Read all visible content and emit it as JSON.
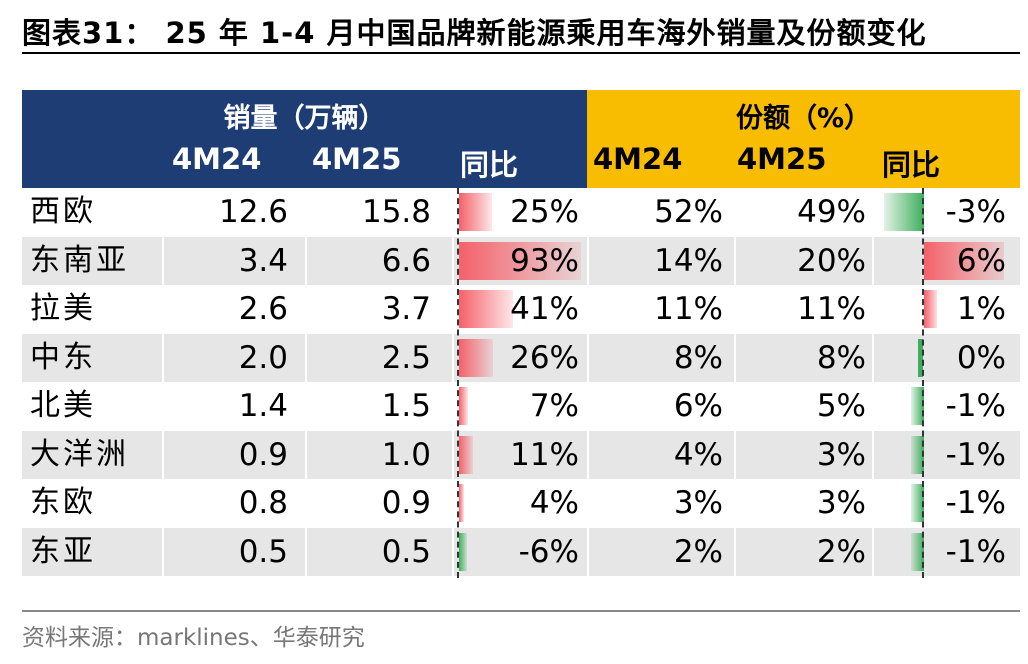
{
  "title": "图表31： 25 年 1-4 月中国品牌新能源乘用车海外销量及份额变化",
  "group_sales": "销量（万辆）",
  "group_share": "份额（%）",
  "columns": {
    "sales_4m24": "4M24",
    "sales_4m25": "4M25",
    "sales_yoy": "同比",
    "share_4m24": "4M24",
    "share_4m25": "4M25",
    "share_yoy": "同比"
  },
  "colors": {
    "header_blue": "#1d3d74",
    "header_gold": "#f9bd00",
    "row_shade": "#e6e6e6",
    "positive_bar": "#f4616a",
    "negative_bar": "#3eae5c"
  },
  "rows": [
    {
      "region": "西欧",
      "s24": "12.6",
      "s25": "15.8",
      "syoy": "25%",
      "syoy_v": 25,
      "p24": "52%",
      "p25": "49%",
      "pyoy": "-3%",
      "pyoy_v": -3
    },
    {
      "region": "东南亚",
      "s24": "3.4",
      "s25": "6.6",
      "syoy": "93%",
      "syoy_v": 93,
      "p24": "14%",
      "p25": "20%",
      "pyoy": "6%",
      "pyoy_v": 6
    },
    {
      "region": "拉美",
      "s24": "2.6",
      "s25": "3.7",
      "syoy": "41%",
      "syoy_v": 41,
      "p24": "11%",
      "p25": "11%",
      "pyoy": "1%",
      "pyoy_v": 1
    },
    {
      "region": "中东",
      "s24": "2.0",
      "s25": "2.5",
      "syoy": "26%",
      "syoy_v": 26,
      "p24": "8%",
      "p25": "8%",
      "pyoy": "0%",
      "pyoy_v": 0
    },
    {
      "region": "北美",
      "s24": "1.4",
      "s25": "1.5",
      "syoy": "7%",
      "syoy_v": 7,
      "p24": "6%",
      "p25": "5%",
      "pyoy": "-1%",
      "pyoy_v": -1
    },
    {
      "region": "大洋洲",
      "s24": "0.9",
      "s25": "1.0",
      "syoy": "11%",
      "syoy_v": 11,
      "p24": "4%",
      "p25": "3%",
      "pyoy": "-1%",
      "pyoy_v": -1
    },
    {
      "region": "东欧",
      "s24": "0.8",
      "s25": "0.9",
      "syoy": "4%",
      "syoy_v": 4,
      "p24": "3%",
      "p25": "3%",
      "pyoy": "-1%",
      "pyoy_v": -1
    },
    {
      "region": "东亚",
      "s24": "0.5",
      "s25": "0.5",
      "syoy": "-6%",
      "syoy_v": -6,
      "p24": "2%",
      "p25": "2%",
      "pyoy": "-1%",
      "pyoy_v": -1
    }
  ],
  "source": "资料来源：marklines、华泰研究"
}
